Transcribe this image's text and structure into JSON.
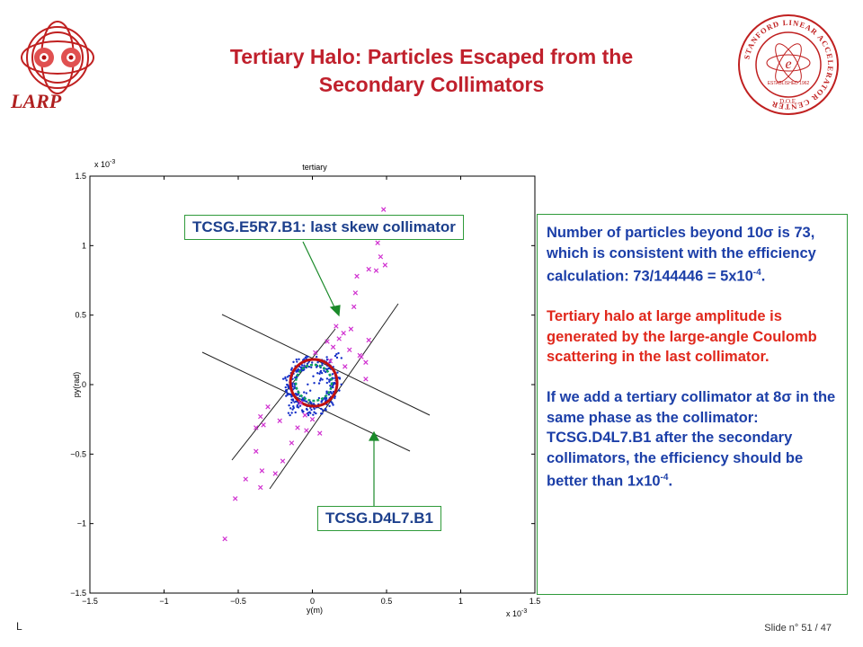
{
  "header": {
    "title_line1": "Tertiary Halo: Particles Escaped from the",
    "title_line2": "Secondary Collimators",
    "left_logo_text": "LARP",
    "right_logo_ring_text": "STANFORD LINEAR ACCELERATOR CENTER",
    "right_logo_established": "ESTABLISHED 1962",
    "right_logo_doe": "D.O.E."
  },
  "plot": {
    "title": "tertiary",
    "x_exponent": "x 10",
    "x_exponent_power": "-3",
    "y_exponent": "x 10",
    "y_exponent_power": "-3",
    "xlabel": "y(m)",
    "ylabel": "py(rad)",
    "xticks": [
      "−1.5",
      "−1",
      "−0.5",
      "0",
      "0.5",
      "1",
      "1.5"
    ],
    "yticks": [
      "1.5",
      "1",
      "0.5",
      "0",
      "−0.5",
      "−1",
      "−1.5"
    ]
  },
  "chart_data": {
    "type": "scatter",
    "title": "tertiary",
    "xlabel": "y(m)",
    "ylabel": "py(rad)",
    "xlim": [
      -1.5,
      1.5
    ],
    "ylim": [
      -1.5,
      1.5
    ],
    "scale_note": "x 10^-3",
    "colors": {
      "tertiary": "#d030d0",
      "core": "#1530c8",
      "aperture": "#c01010",
      "inner": "#10a060"
    },
    "series": [
      {
        "marker": "x",
        "points": [
          [
            0.48,
            1.26
          ],
          [
            0.44,
            1.02
          ],
          [
            0.46,
            0.92
          ],
          [
            0.49,
            0.86
          ],
          [
            0.43,
            0.82
          ],
          [
            0.38,
            0.83
          ],
          [
            0.3,
            0.78
          ],
          [
            0.29,
            0.66
          ],
          [
            0.28,
            0.56
          ],
          [
            0.38,
            0.32
          ],
          [
            0.36,
            0.16
          ],
          [
            0.32,
            0.21
          ],
          [
            0.26,
            0.4
          ],
          [
            0.16,
            0.42
          ],
          [
            0.14,
            0.27
          ],
          [
            0.1,
            0.31
          ],
          [
            0.18,
            0.33
          ],
          [
            0.21,
            0.37
          ],
          [
            0.25,
            0.25
          ],
          [
            0.33,
            0.2
          ],
          [
            0.12,
            0.17
          ],
          [
            0.02,
            0.23
          ],
          [
            0.22,
            0.13
          ],
          [
            0.36,
            0.04
          ],
          [
            -0.3,
            -0.16
          ],
          [
            -0.35,
            -0.23
          ],
          [
            -0.33,
            -0.29
          ],
          [
            -0.38,
            -0.31
          ],
          [
            -0.22,
            -0.26
          ],
          [
            -0.05,
            -0.22
          ],
          [
            -0.04,
            -0.33
          ],
          [
            -0.1,
            -0.31
          ],
          [
            0.0,
            -0.25
          ],
          [
            -0.14,
            -0.42
          ],
          [
            -0.2,
            -0.55
          ],
          [
            -0.25,
            -0.64
          ],
          [
            -0.34,
            -0.62
          ],
          [
            -0.38,
            -0.48
          ],
          [
            -0.45,
            -0.68
          ],
          [
            -0.52,
            -0.82
          ],
          [
            -0.59,
            -1.11
          ],
          [
            -0.35,
            -0.74
          ],
          [
            0.05,
            -0.35
          ],
          [
            -0.08,
            -0.13
          ]
        ]
      }
    ]
  },
  "callouts": {
    "top": "TCSG.E5R7.B1: last skew collimator",
    "bottom": "TCSG.D4L7.B1"
  },
  "info": {
    "p1_prefix": "Number of particles beyond 10",
    "p1_sigma": "σ",
    "p1_mid": " is 73, which is consistent with the efficiency calculation: 73/144446 = 5x10",
    "p1_exp": "-4",
    "p1_end": ".",
    "p2": "Tertiary halo at large amplitude is generated by the large-angle Coulomb scattering in the last collimator.",
    "p3_prefix": "If we add a tertiary collimator at 8",
    "p3_sigma": "σ",
    "p3_mid": " in the same phase as the collimator: TCSG.D4L7.B1 after the secondary collimators, the efficiency should be better than 1x10",
    "p3_exp": "-4",
    "p3_end": "."
  },
  "footer": {
    "left": "L",
    "right": "Slide n° 51 / 47"
  }
}
